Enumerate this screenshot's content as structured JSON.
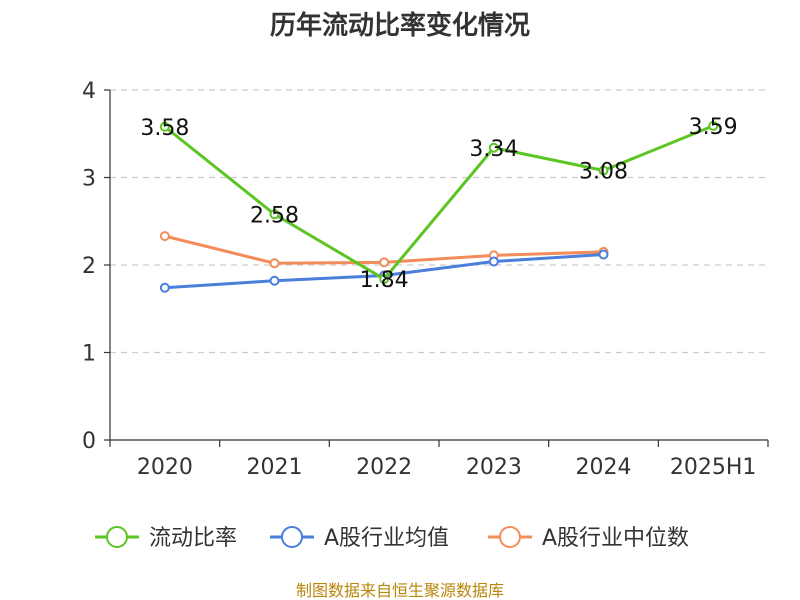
{
  "chart_data": {
    "type": "line",
    "title": "历年流动比率变化情况",
    "categories": [
      "2020",
      "2021",
      "2022",
      "2023",
      "2024",
      "2025H1"
    ],
    "ylim": [
      0,
      4
    ],
    "yticks": [
      "0",
      "1",
      "2",
      "3",
      "4"
    ],
    "grid": true,
    "legend_position": "bottom",
    "series": [
      {
        "name": "流动比率",
        "color": "#5cc423",
        "values": [
          3.58,
          2.58,
          1.84,
          3.34,
          3.08,
          3.59
        ],
        "labels": [
          "3.58",
          "2.58",
          "1.84",
          "3.34",
          "3.08",
          "3.59"
        ]
      },
      {
        "name": "A股行业均值",
        "color": "#4a7fdc",
        "values": [
          1.74,
          1.82,
          1.88,
          2.04,
          2.12,
          null
        ]
      },
      {
        "name": "A股行业中位数",
        "color": "#f28c5b",
        "values": [
          2.33,
          2.02,
          2.03,
          2.11,
          2.15,
          null
        ]
      }
    ]
  },
  "footer": "制图数据来自恒生聚源数据库"
}
